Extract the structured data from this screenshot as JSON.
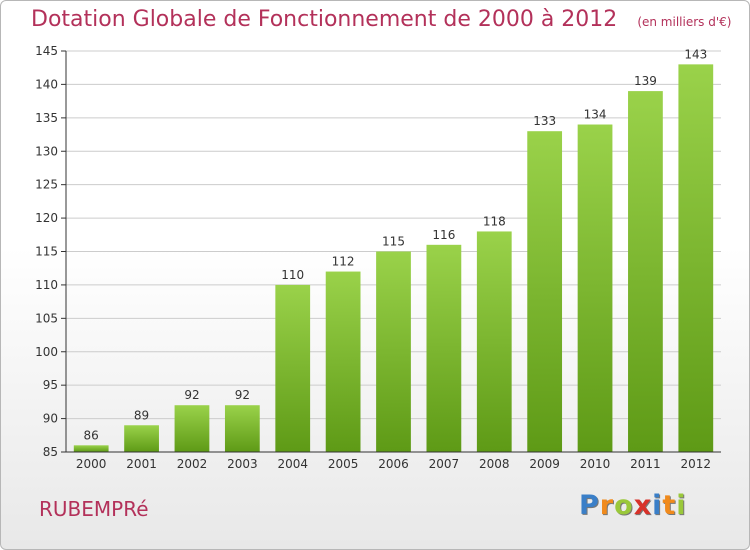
{
  "title": "Dotation Globale de Fonctionnement de 2000 à 2012",
  "unit_note": "(en milliers d'€)",
  "city": "RUBEMPRé",
  "logo": {
    "letters": [
      {
        "ch": "P",
        "color": "#3a7fc8"
      },
      {
        "ch": "r",
        "color": "#f08a1c"
      },
      {
        "ch": "o",
        "color": "#9ac83a"
      },
      {
        "ch": "x",
        "color": "#d8322a"
      },
      {
        "ch": "i",
        "color": "#3a7fc8"
      },
      {
        "ch": "t",
        "color": "#f08a1c"
      },
      {
        "ch": "i",
        "color": "#9ac83a"
      }
    ]
  },
  "colors": {
    "accent": "#b3315a",
    "bar_top": "#9ad24a",
    "bar_bottom": "#5e9a16",
    "grid": "#cccccc",
    "axis": "#333333"
  },
  "chart_data": {
    "type": "bar",
    "categories": [
      "2000",
      "2001",
      "2002",
      "2003",
      "2004",
      "2005",
      "2006",
      "2007",
      "2008",
      "2009",
      "2010",
      "2011",
      "2012"
    ],
    "values": [
      86,
      89,
      92,
      92,
      110,
      112,
      115,
      116,
      118,
      133,
      134,
      139,
      143
    ],
    "ylim": [
      85,
      145
    ],
    "yticks": [
      85,
      90,
      95,
      100,
      105,
      110,
      115,
      120,
      125,
      130,
      135,
      140,
      145
    ],
    "grid": true,
    "legend": "none"
  }
}
